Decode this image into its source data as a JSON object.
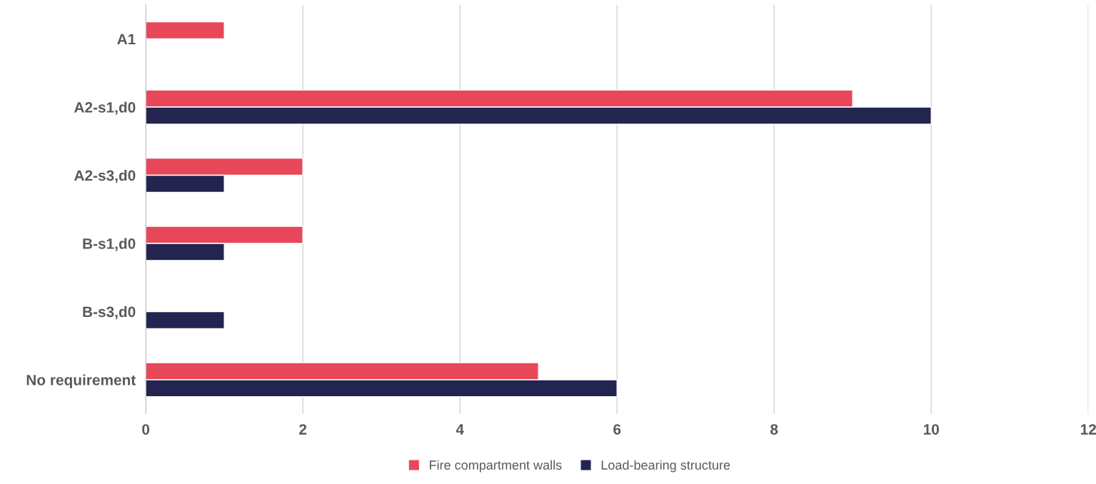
{
  "chart_data": {
    "type": "bar",
    "orientation": "horizontal",
    "categories": [
      "A1",
      "A2-s1,d0",
      "A2-s3,d0",
      "B-s1,d0",
      "B-s3,d0",
      "No requirement"
    ],
    "series": [
      {
        "name": "Fire compartment walls",
        "color": "#e8475a",
        "values": [
          1,
          9,
          2,
          2,
          null,
          5
        ]
      },
      {
        "name": "Load-bearing structure",
        "color": "#23244f",
        "values": [
          null,
          10,
          1,
          1,
          1,
          6
        ]
      }
    ],
    "xlim": [
      0,
      12
    ],
    "xticks": [
      0,
      2,
      4,
      6,
      8,
      10,
      12
    ],
    "grid": "x",
    "legend": "bottom"
  }
}
